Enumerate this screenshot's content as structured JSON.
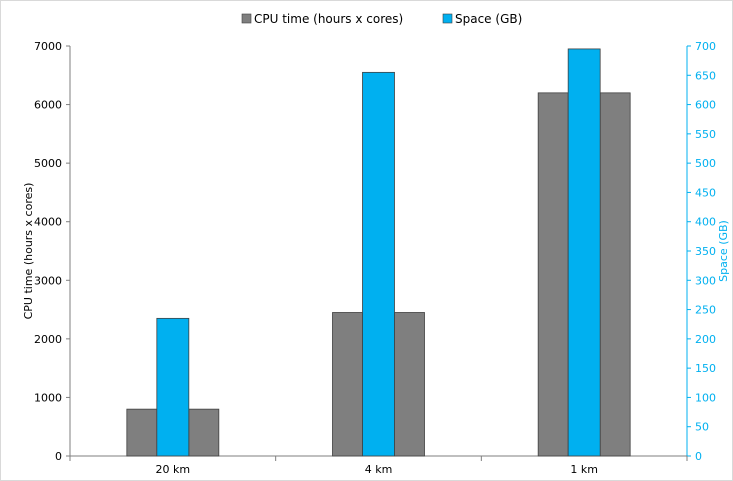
{
  "chart_data": {
    "type": "bar",
    "categories": [
      "20 km",
      "4 km",
      "1 km"
    ],
    "series": [
      {
        "name": "CPU time (hours x cores)",
        "axis": "left",
        "color": "#7f7f7f",
        "values": [
          800,
          2450,
          6200
        ]
      },
      {
        "name": "Space (GB)",
        "axis": "right",
        "color": "#00b0f0",
        "values": [
          235,
          655,
          695
        ]
      }
    ],
    "ylabel": "CPU time (hours x cores)",
    "y2label": "Space (GB)",
    "ylim": [
      0,
      7000
    ],
    "y2lim": [
      0,
      700
    ],
    "yticks": [
      "0",
      "1000",
      "2000",
      "3000",
      "4000",
      "5000",
      "6000",
      "7000"
    ],
    "y2ticks": [
      "0",
      "50",
      "100",
      "150",
      "200",
      "250",
      "300",
      "350",
      "400",
      "450",
      "500",
      "550",
      "600",
      "650",
      "700"
    ],
    "legend_position": "top",
    "grid": false,
    "right_axis_color": "#00b0f0"
  }
}
